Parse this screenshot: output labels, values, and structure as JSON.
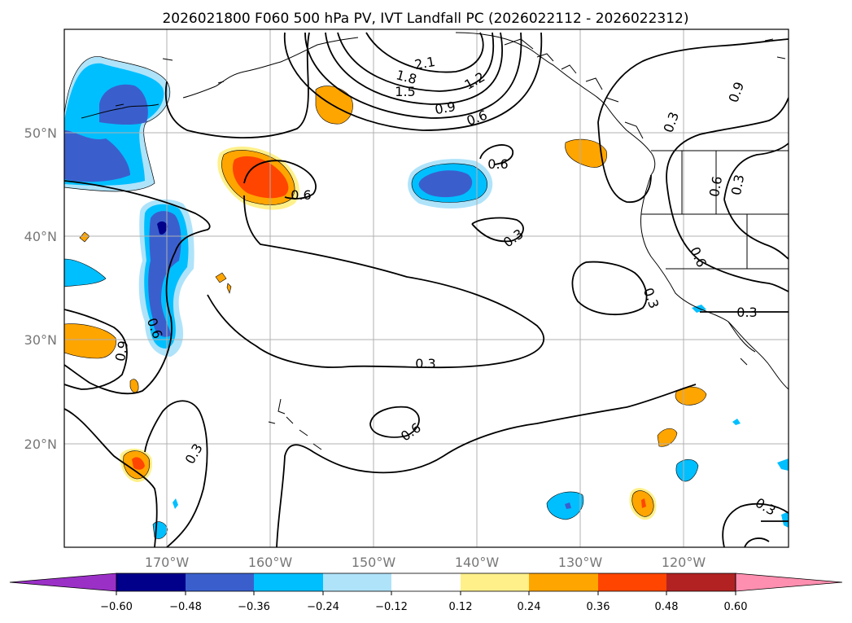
{
  "title": "2026021800 F060 500 hPa PV, IVT Landfall PC (2026022112 - 2026022312)",
  "lat_labels": [
    "50°N",
    "40°N",
    "30°N",
    "20°N"
  ],
  "lon_labels": [
    "170°W",
    "160°W",
    "150°W",
    "140°W",
    "130°W",
    "120°W"
  ],
  "contour_labels": [
    "2.1",
    "1.8",
    "1.5",
    "1.2",
    "0.9",
    "0.6",
    "0.6",
    "0.6",
    "0.3",
    "0.9",
    "0.6",
    "0.3",
    "0.3",
    "0.9",
    "0.6",
    "0.3",
    "0.6",
    "0.3",
    "0.3",
    "0.6",
    "0.3",
    "0.3"
  ],
  "colorbar": {
    "ticks": [
      "−0.60",
      "−0.48",
      "−0.36",
      "−0.24",
      "−0.12",
      "0.12",
      "0.24",
      "0.36",
      "0.48",
      "0.60"
    ],
    "colors": [
      "#9b30c7",
      "#00008b",
      "#3a5fcd",
      "#00bfff",
      "#afe3fa",
      "#ffffff",
      "#fff08a",
      "#ffa500",
      "#ff4500",
      "#b22222",
      "#ff8fb0"
    ]
  }
}
